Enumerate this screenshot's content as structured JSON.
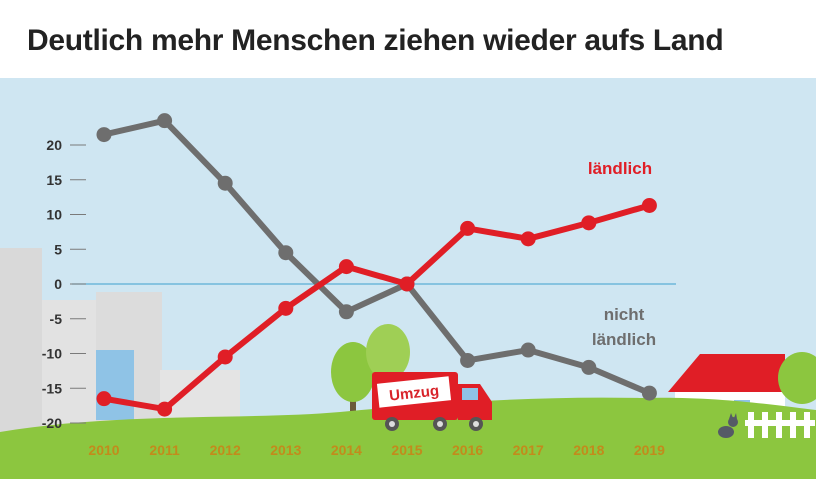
{
  "title": "Deutlich mehr Menschen ziehen wieder aufs Land",
  "colors": {
    "laendlich": "#e01e26",
    "nicht_laendlich": "#6e6e6e",
    "zero_line": "#5aaed6",
    "year_labels": "#c28b1c",
    "sky": "#cfe6f2",
    "grass": "#8cc63f"
  },
  "decor": {
    "truck_label": "Umzug"
  },
  "chart_data": {
    "type": "line",
    "title": "Deutlich mehr Menschen ziehen wieder aufs Land",
    "x": [
      "2010",
      "2011",
      "2012",
      "2013",
      "2014",
      "2015",
      "2016",
      "2017",
      "2018",
      "2019"
    ],
    "y_ticks": [
      20,
      15,
      10,
      5,
      0,
      -5,
      -10,
      -15,
      -20
    ],
    "ylim": [
      -20,
      24
    ],
    "grid": false,
    "series": [
      {
        "name": "ländlich",
        "color": "#e01e26",
        "values": [
          -16.5,
          -18,
          -10.5,
          -3.5,
          2.5,
          0,
          8,
          6.5,
          8.8,
          11.3
        ]
      },
      {
        "name": "nicht ländlich",
        "color": "#6e6e6e",
        "values": [
          21.5,
          23.5,
          14.5,
          4.5,
          -4,
          0,
          -11,
          -9.5,
          -12,
          -15.7
        ]
      }
    ],
    "series_labels": {
      "laendlich": "ländlich",
      "nicht_laendlich_line1": "nicht",
      "nicht_laendlich_line2": "ländlich"
    },
    "xlabel": "",
    "ylabel": ""
  }
}
